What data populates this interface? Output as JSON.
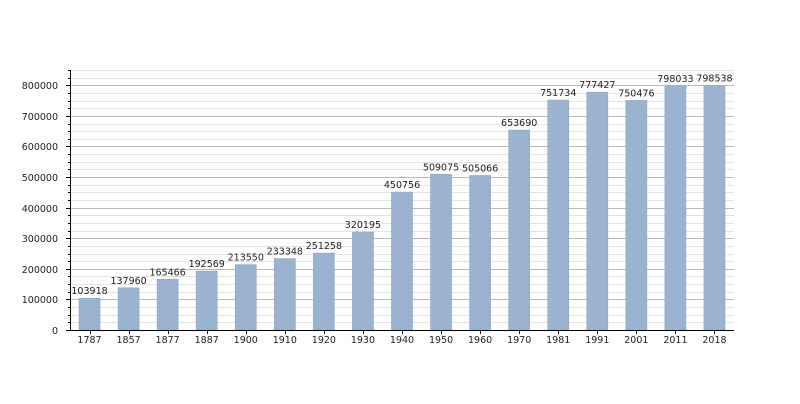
{
  "chart_data": {
    "type": "bar",
    "title": "",
    "xlabel": "",
    "ylabel": "",
    "categories": [
      "1787",
      "1857",
      "1877",
      "1887",
      "1900",
      "1910",
      "1920",
      "1930",
      "1940",
      "1950",
      "1960",
      "1970",
      "1981",
      "1991",
      "2001",
      "2011",
      "2018"
    ],
    "values": [
      103918,
      137960,
      165466,
      192569,
      213550,
      233348,
      251258,
      320195,
      450756,
      509075,
      505066,
      653690,
      751734,
      777427,
      750476,
      798033,
      798538
    ],
    "data_labels": [
      "103918",
      "137960",
      "165466",
      "192569",
      "213550",
      "233348",
      "251258",
      "320195",
      "450756",
      "509075",
      "505066",
      "653690",
      "751734",
      "777427",
      "750476",
      "798033",
      "798538"
    ],
    "y_ticks": [
      "0",
      "100000",
      "200000",
      "300000",
      "400000",
      "500000",
      "600000",
      "700000",
      "800000"
    ],
    "ylim": [
      0,
      850000
    ],
    "grid": true,
    "legend": "none",
    "colors": {
      "bar": "#9bb3cf",
      "bar_edge": "#8ca5c2",
      "grid_major": "#b9b9b9",
      "grid_minor": "#e4e4e4",
      "axis": "#000000",
      "text": "#222222"
    }
  }
}
